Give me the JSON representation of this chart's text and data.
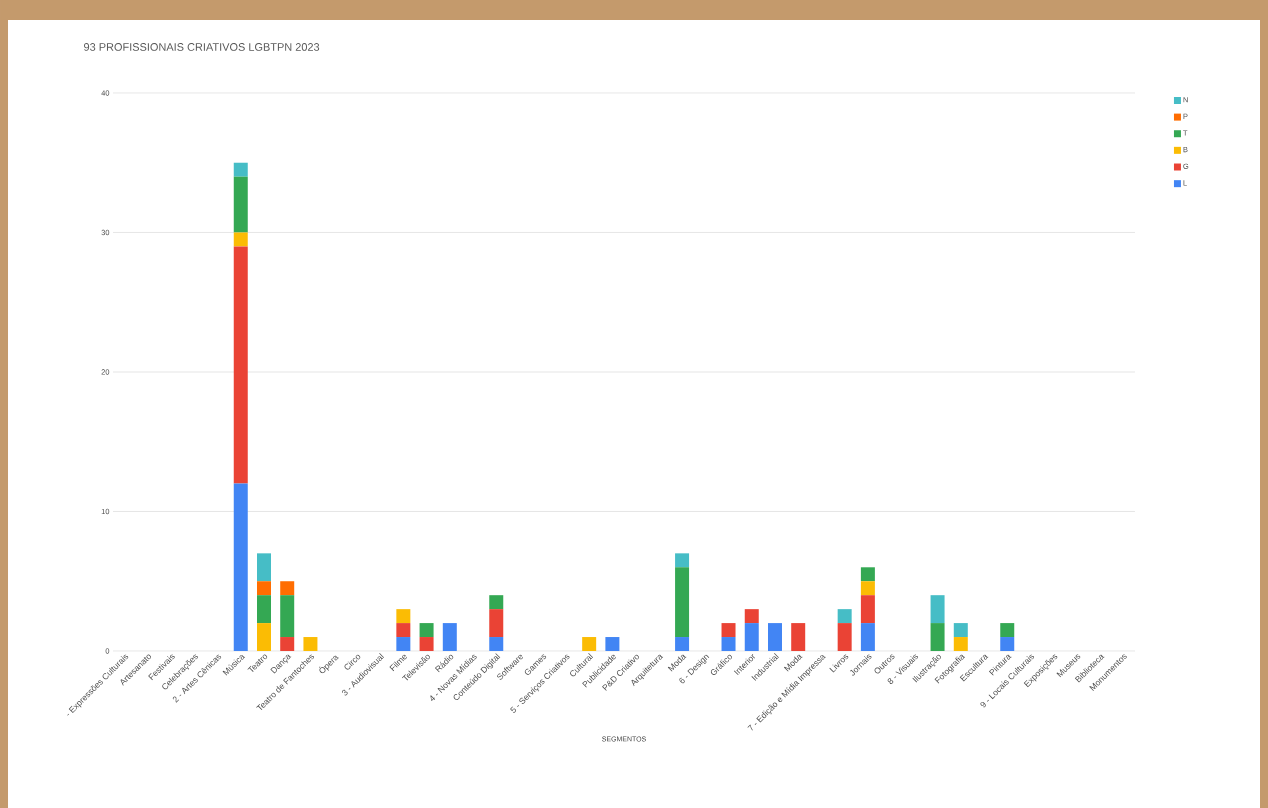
{
  "chart_data": {
    "type": "bar",
    "stacked": true,
    "title": "93 PROFISSIONAIS CRIATIVOS LGBTPN 2023",
    "xlabel": "SEGMENTOS",
    "categories": [
      "- Expressões Culturais",
      "Artesanato",
      "Festivais",
      "Celebrações",
      "2 - Artes Cênicas",
      "Música",
      "Teatro",
      "Dança",
      "Teatro de Fantoches",
      "Ópera",
      "Circo",
      "3 - Audiovisual",
      "Filme",
      "Televisão",
      "Rádio",
      "4 - Novas Mídias",
      "Conteúdo Digital",
      "Software",
      "Games",
      "5 - Serviços Criativos",
      "Cultural",
      "Publicidade",
      "P&D Criativo",
      "Arquitetura",
      "Moda",
      "6 - Design",
      "Gráfico",
      "Interior",
      "Industrial",
      "Moda",
      "7 - Edição e Mídia Impressa",
      "Livros",
      "Jornais",
      "Outros",
      "8 - Visuais",
      "Ilustração",
      "Fotografia",
      "Escultura",
      "Pintura",
      "9 - Locais Culturais",
      "Exposições",
      "Museus",
      "Biblioteca",
      "Monumentos"
    ],
    "series": [
      {
        "name": "L",
        "color": "#4285f4",
        "values": [
          0,
          0,
          0,
          0,
          0,
          12,
          0,
          0,
          0,
          0,
          0,
          0,
          1,
          0,
          2,
          0,
          1,
          0,
          0,
          0,
          0,
          1,
          0,
          0,
          1,
          0,
          1,
          2,
          2,
          0,
          0,
          0,
          2,
          0,
          0,
          0,
          0,
          0,
          1,
          0,
          0,
          0,
          0,
          0
        ]
      },
      {
        "name": "G",
        "color": "#ea4335",
        "values": [
          0,
          0,
          0,
          0,
          0,
          17,
          0,
          1,
          0,
          0,
          0,
          0,
          1,
          1,
          0,
          0,
          2,
          0,
          0,
          0,
          0,
          0,
          0,
          0,
          0,
          0,
          1,
          1,
          0,
          2,
          0,
          2,
          2,
          0,
          0,
          0,
          0,
          0,
          0,
          0,
          0,
          0,
          0,
          0
        ]
      },
      {
        "name": "B",
        "color": "#fbbc04",
        "values": [
          0,
          0,
          0,
          0,
          0,
          1,
          2,
          0,
          1,
          0,
          0,
          0,
          1,
          0,
          0,
          0,
          0,
          0,
          0,
          0,
          1,
          0,
          0,
          0,
          0,
          0,
          0,
          0,
          0,
          0,
          0,
          0,
          1,
          0,
          0,
          0,
          1,
          0,
          0,
          0,
          0,
          0,
          0,
          0
        ]
      },
      {
        "name": "T",
        "color": "#34a853",
        "values": [
          0,
          0,
          0,
          0,
          0,
          4,
          2,
          3,
          0,
          0,
          0,
          0,
          0,
          1,
          0,
          0,
          1,
          0,
          0,
          0,
          0,
          0,
          0,
          0,
          5,
          0,
          0,
          0,
          0,
          0,
          0,
          0,
          1,
          0,
          0,
          2,
          0,
          0,
          1,
          0,
          0,
          0,
          0,
          0
        ]
      },
      {
        "name": "P",
        "color": "#ff6d01",
        "values": [
          0,
          0,
          0,
          0,
          0,
          0,
          1,
          1,
          0,
          0,
          0,
          0,
          0,
          0,
          0,
          0,
          0,
          0,
          0,
          0,
          0,
          0,
          0,
          0,
          0,
          0,
          0,
          0,
          0,
          0,
          0,
          0,
          0,
          0,
          0,
          0,
          0,
          0,
          0,
          0,
          0,
          0,
          0,
          0
        ]
      },
      {
        "name": "N",
        "color": "#46bdc6",
        "values": [
          0,
          0,
          0,
          0,
          0,
          1,
          2,
          0,
          0,
          0,
          0,
          0,
          0,
          0,
          0,
          0,
          0,
          0,
          0,
          0,
          0,
          0,
          0,
          0,
          1,
          0,
          0,
          0,
          0,
          0,
          0,
          1,
          0,
          0,
          0,
          2,
          1,
          0,
          0,
          0,
          0,
          0,
          0,
          0
        ]
      }
    ],
    "ylim": [
      0,
      40
    ],
    "yticks": [
      0,
      10,
      20,
      30,
      40
    ],
    "grid": "y",
    "legend": "right"
  }
}
